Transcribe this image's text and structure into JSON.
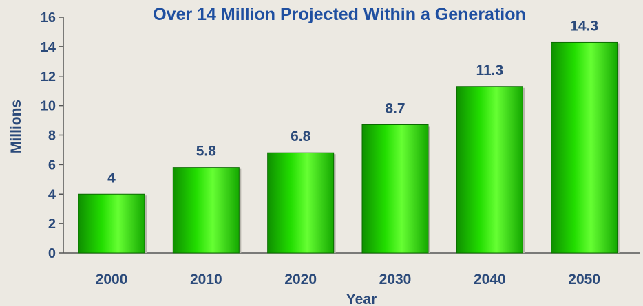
{
  "chart_data": {
    "type": "bar",
    "title": "Over 14 Million Projected Within a Generation",
    "xlabel": "Year",
    "ylabel": "Millions",
    "categories": [
      "2000",
      "2010",
      "2020",
      "2030",
      "2040",
      "2050"
    ],
    "values": [
      4,
      5.8,
      6.8,
      8.7,
      11.3,
      14.3
    ],
    "value_labels": [
      "4",
      "5.8",
      "6.8",
      "8.7",
      "11.3",
      "14.3"
    ],
    "ylim": [
      0,
      16
    ],
    "yticks": [
      0,
      2,
      4,
      6,
      8,
      10,
      12,
      14,
      16
    ],
    "grid": false,
    "legend": "none",
    "colors": {
      "bar": "#22dd00",
      "bar_light": "#66ff33",
      "bar_dark": "#0f8f00",
      "text": "#2b4a7a",
      "title": "#1f4fa0",
      "axis": "#555555",
      "background": "#ece9e2"
    }
  }
}
